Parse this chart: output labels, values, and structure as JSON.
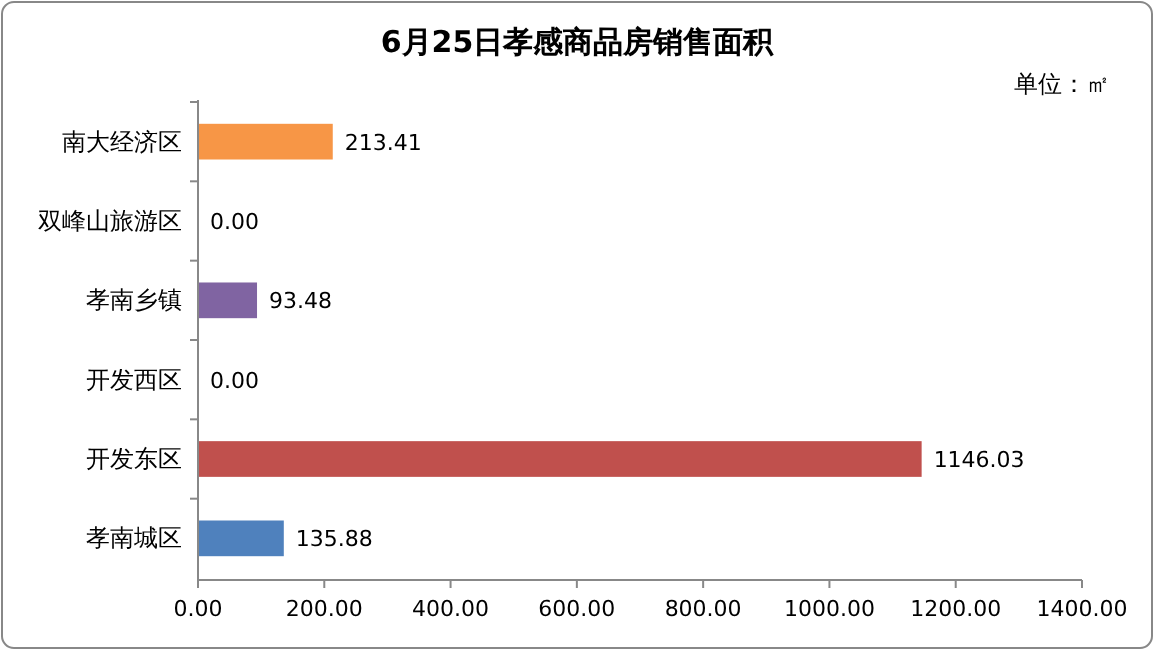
{
  "chart_data": {
    "type": "bar",
    "orientation": "horizontal",
    "title": "6月25日孝感商品房销售面积",
    "annotations": [
      "单位：㎡"
    ],
    "categories": [
      "南大经济区",
      "双峰山旅游区",
      "孝南乡镇",
      "开发西区",
      "开发东区",
      "孝南城区"
    ],
    "values": [
      213.41,
      0,
      93.48,
      0,
      1146.03,
      135.88
    ],
    "value_labels": [
      "213.41",
      "0.00",
      "93.48",
      "0.00",
      "1146.03",
      "135.88"
    ],
    "colors": [
      "#f79646",
      "#9bbb59",
      "#8064a2",
      "#4bacc6",
      "#c0504d",
      "#4f81bd"
    ],
    "xlim": [
      0,
      1400
    ],
    "xticks": [
      {
        "value": 0,
        "label": "0.00"
      },
      {
        "value": 200,
        "label": "200.00"
      },
      {
        "value": 400,
        "label": "400.00"
      },
      {
        "value": 600,
        "label": "600.00"
      },
      {
        "value": 800,
        "label": "800.00"
      },
      {
        "value": 1000,
        "label": "1000.00"
      },
      {
        "value": 1200,
        "label": "1200.00"
      },
      {
        "value": 1400,
        "label": "1400.00"
      }
    ],
    "grid": false
  }
}
